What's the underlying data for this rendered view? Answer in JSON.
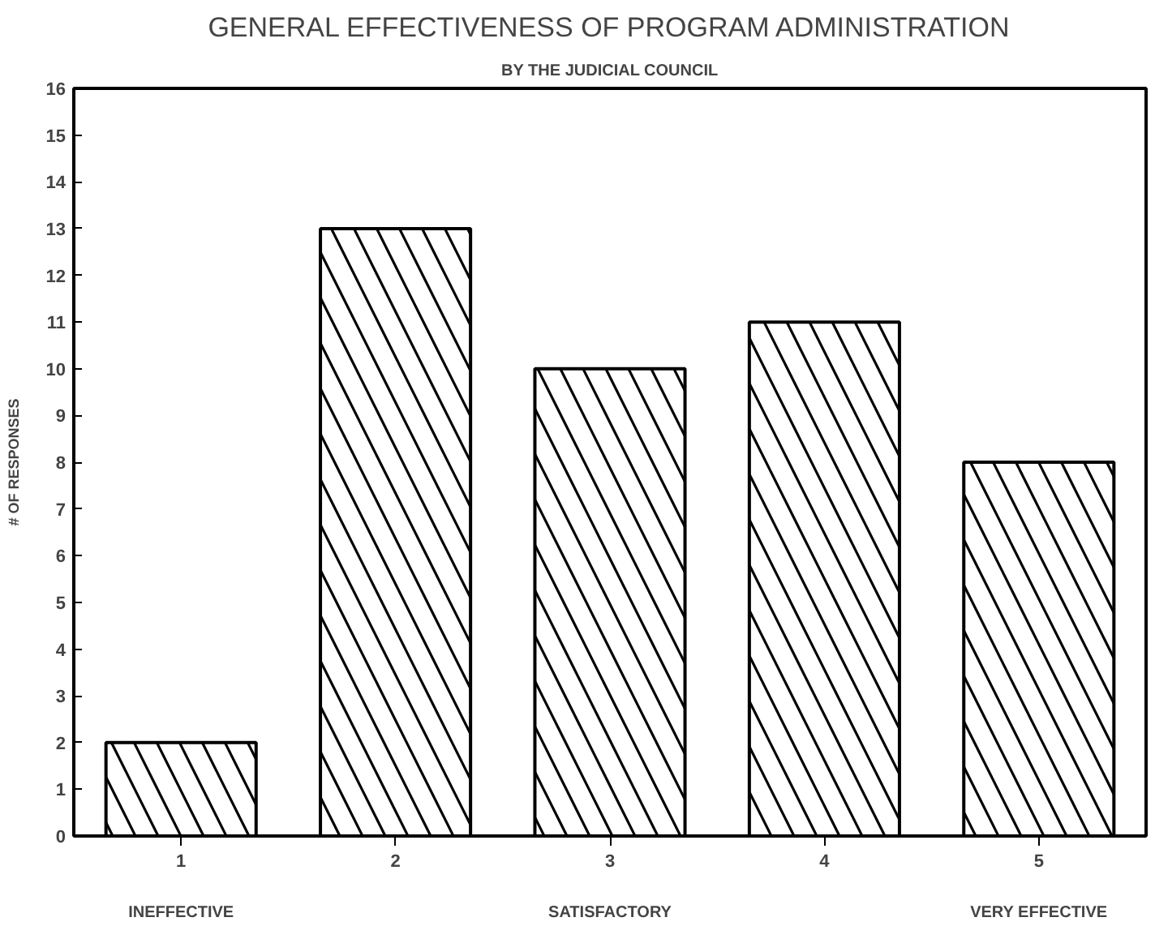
{
  "chart_data": {
    "type": "bar",
    "title": "GENERAL EFFECTIVENESS OF PROGRAM ADMINISTRATION",
    "subtitle": "BY THE JUDICIAL COUNCIL",
    "ylabel": "# OF RESPONSES",
    "categories": [
      "1",
      "2",
      "3",
      "4",
      "5"
    ],
    "values": [
      2,
      13,
      10,
      11,
      8
    ],
    "color": "#000000",
    "ylim": [
      0,
      16
    ],
    "yticks": [
      0,
      1,
      2,
      3,
      4,
      5,
      6,
      7,
      8,
      9,
      10,
      11,
      12,
      13,
      14,
      15,
      16
    ],
    "grid": false,
    "annotations": [
      "INEFFECTIVE",
      "SATISFACTORY",
      "VERY EFFECTIVE"
    ]
  }
}
